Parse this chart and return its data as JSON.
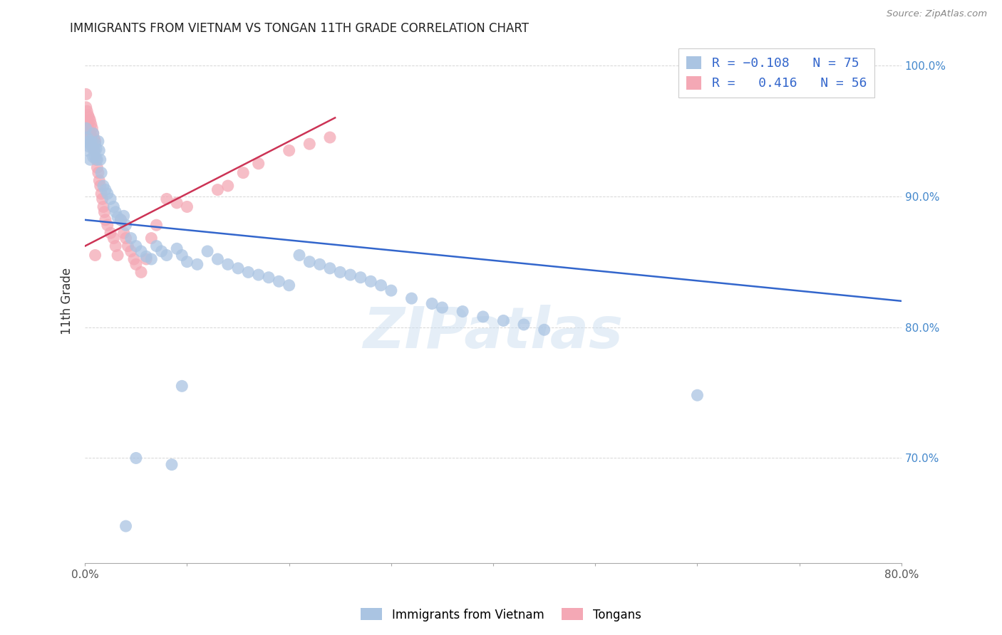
{
  "title": "IMMIGRANTS FROM VIETNAM VS TONGAN 11TH GRADE CORRELATION CHART",
  "source": "Source: ZipAtlas.com",
  "ylabel": "11th Grade",
  "xlim": [
    0.0,
    0.8
  ],
  "ylim": [
    0.62,
    1.02
  ],
  "xticks": [
    0.0,
    0.1,
    0.2,
    0.3,
    0.4,
    0.5,
    0.6,
    0.7,
    0.8
  ],
  "xticklabels": [
    "0.0%",
    "",
    "",
    "",
    "",
    "",
    "",
    "",
    "80.0%"
  ],
  "yticks": [
    0.7,
    0.8,
    0.9,
    1.0
  ],
  "yticklabels": [
    "70.0%",
    "80.0%",
    "90.0%",
    "100.0%"
  ],
  "grid_color": "#cccccc",
  "background_color": "#ffffff",
  "watermark": "ZIPatlas",
  "vietnam_color": "#aac4e2",
  "tongan_color": "#f4a8b5",
  "vietnam_line_color": "#3366cc",
  "tongan_line_color": "#cc3355",
  "vietnam_R": -0.108,
  "vietnam_N": 75,
  "tongan_R": 0.416,
  "tongan_N": 56,
  "legend_label_vietnam": "Immigrants from Vietnam",
  "legend_label_tongan": "Tongans",
  "vietnam_x": [
    0.001,
    0.002,
    0.002,
    0.003,
    0.004,
    0.005,
    0.005,
    0.006,
    0.007,
    0.008,
    0.008,
    0.009,
    0.01,
    0.01,
    0.011,
    0.012,
    0.013,
    0.014,
    0.015,
    0.016,
    0.018,
    0.02,
    0.022,
    0.025,
    0.028,
    0.03,
    0.032,
    0.035,
    0.038,
    0.04,
    0.045,
    0.05,
    0.055,
    0.06,
    0.065,
    0.07,
    0.075,
    0.08,
    0.09,
    0.095,
    0.1,
    0.11,
    0.12,
    0.13,
    0.14,
    0.15,
    0.16,
    0.17,
    0.18,
    0.19,
    0.2,
    0.21,
    0.22,
    0.23,
    0.24,
    0.25,
    0.26,
    0.27,
    0.28,
    0.29,
    0.3,
    0.32,
    0.34,
    0.35,
    0.37,
    0.39,
    0.41,
    0.43,
    0.45,
    0.6,
    0.61,
    0.05,
    0.085,
    0.095,
    0.04
  ],
  "vietnam_y": [
    0.952,
    0.945,
    0.935,
    0.942,
    0.938,
    0.94,
    0.928,
    0.942,
    0.938,
    0.93,
    0.948,
    0.935,
    0.94,
    0.93,
    0.936,
    0.928,
    0.942,
    0.935,
    0.928,
    0.918,
    0.908,
    0.905,
    0.902,
    0.898,
    0.892,
    0.888,
    0.884,
    0.882,
    0.885,
    0.878,
    0.868,
    0.862,
    0.858,
    0.854,
    0.852,
    0.862,
    0.858,
    0.855,
    0.86,
    0.855,
    0.85,
    0.848,
    0.858,
    0.852,
    0.848,
    0.845,
    0.842,
    0.84,
    0.838,
    0.835,
    0.832,
    0.855,
    0.85,
    0.848,
    0.845,
    0.842,
    0.84,
    0.838,
    0.835,
    0.832,
    0.828,
    0.822,
    0.818,
    0.815,
    0.812,
    0.808,
    0.805,
    0.802,
    0.798,
    0.748,
    1.005,
    0.7,
    0.695,
    0.755,
    0.648
  ],
  "tongan_x": [
    0.001,
    0.001,
    0.002,
    0.002,
    0.003,
    0.003,
    0.004,
    0.004,
    0.005,
    0.005,
    0.006,
    0.006,
    0.007,
    0.007,
    0.008,
    0.008,
    0.009,
    0.009,
    0.01,
    0.01,
    0.011,
    0.012,
    0.013,
    0.014,
    0.015,
    0.016,
    0.017,
    0.018,
    0.019,
    0.02,
    0.022,
    0.025,
    0.028,
    0.03,
    0.032,
    0.035,
    0.038,
    0.04,
    0.042,
    0.045,
    0.048,
    0.05,
    0.055,
    0.06,
    0.065,
    0.07,
    0.08,
    0.09,
    0.1,
    0.13,
    0.14,
    0.155,
    0.17,
    0.2,
    0.22,
    0.24
  ],
  "tongan_y": [
    0.968,
    0.978,
    0.965,
    0.958,
    0.962,
    0.955,
    0.96,
    0.95,
    0.958,
    0.948,
    0.955,
    0.945,
    0.952,
    0.94,
    0.948,
    0.938,
    0.944,
    0.935,
    0.942,
    0.855,
    0.928,
    0.922,
    0.918,
    0.912,
    0.908,
    0.902,
    0.898,
    0.892,
    0.888,
    0.882,
    0.878,
    0.872,
    0.868,
    0.862,
    0.855,
    0.882,
    0.872,
    0.868,
    0.862,
    0.858,
    0.852,
    0.848,
    0.842,
    0.852,
    0.868,
    0.878,
    0.898,
    0.895,
    0.892,
    0.905,
    0.908,
    0.918,
    0.925,
    0.935,
    0.94,
    0.945
  ],
  "vietnam_line_x": [
    0.0,
    0.8
  ],
  "vietnam_line_y": [
    0.882,
    0.82
  ],
  "tongan_line_x": [
    0.0,
    0.245
  ],
  "tongan_line_y": [
    0.862,
    0.96
  ]
}
